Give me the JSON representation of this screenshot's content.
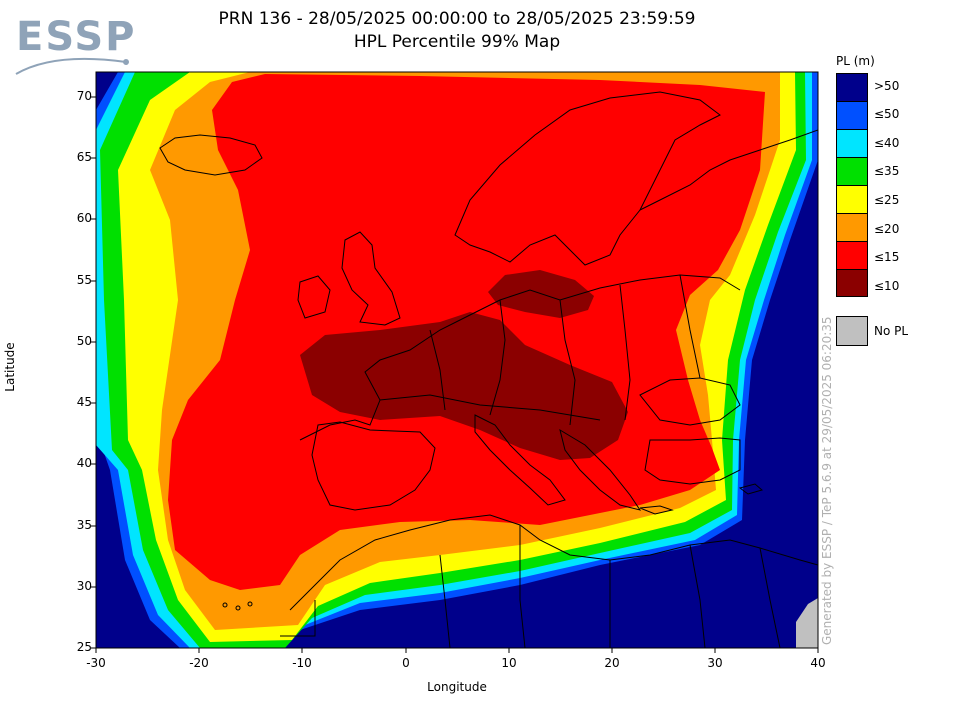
{
  "title_line1": "PRN 136 - 28/05/2025 00:00:00 to 28/05/2025 23:59:59",
  "title_line2": "HPL Percentile 99% Map",
  "logo": "ESSP",
  "x_axis": {
    "label": "Longitude",
    "ticks": [
      -30,
      -20,
      -10,
      0,
      10,
      20,
      30,
      40
    ],
    "range": [
      -30,
      40
    ]
  },
  "y_axis": {
    "label": "Latitude",
    "ticks": [
      25,
      30,
      35,
      40,
      45,
      50,
      55,
      60,
      65,
      70
    ],
    "range": [
      25,
      72
    ]
  },
  "legend": {
    "title": "PL (m)",
    "levels": [
      {
        "label": ">50",
        "color": "#00008b"
      },
      {
        "label": "≤50",
        "color": "#0050ff"
      },
      {
        "label": "≤40",
        "color": "#00e5ff"
      },
      {
        "label": "≤35",
        "color": "#00e000"
      },
      {
        "label": "≤25",
        "color": "#ffff00"
      },
      {
        "label": "≤20",
        "color": "#ff9900"
      },
      {
        "label": "≤15",
        "color": "#ff0000"
      },
      {
        "label": "≤10",
        "color": "#8b0000"
      }
    ],
    "no_pl": {
      "label": "No PL",
      "color": "#c0c0c0"
    }
  },
  "credit": "Generated by ESSP / TeP 5.6.9 at 29/05/2025 06:20:35"
}
